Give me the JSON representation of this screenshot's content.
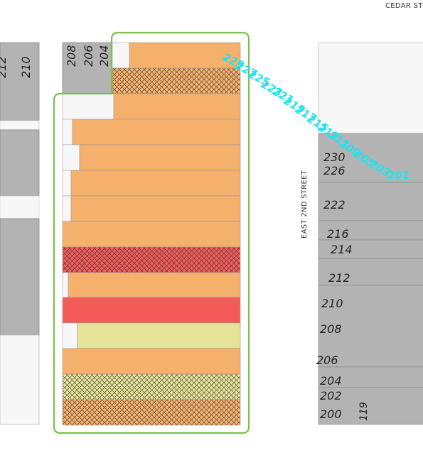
{
  "map": {
    "streets": {
      "cedar_street": "CEDAR ST",
      "east_2nd_street": "EAST 2ND STREET"
    },
    "left_block": {
      "labels": [
        "212",
        "210"
      ]
    },
    "center_block": {
      "labels": [
        "208",
        "206",
        "204"
      ]
    },
    "right_block": {
      "labels": [
        "230",
        "226",
        "222",
        "216",
        "214",
        "212",
        "210",
        "208",
        "206",
        "204",
        "202",
        "200"
      ],
      "side_label": "119"
    },
    "highlighted_addresses": [
      "229",
      "227",
      "225",
      "223",
      "221",
      "219",
      "217",
      "215",
      "213",
      "211",
      "209",
      "205",
      "203",
      "201"
    ],
    "colors": {
      "parcel_gray": "#b3b3b3",
      "parcel_orange": "#f5b06b",
      "parcel_red": "#f45b58",
      "parcel_yellow": "#e6e297",
      "selection_outline": "#7cc04a",
      "address_highlight": "#22e3ee"
    }
  }
}
